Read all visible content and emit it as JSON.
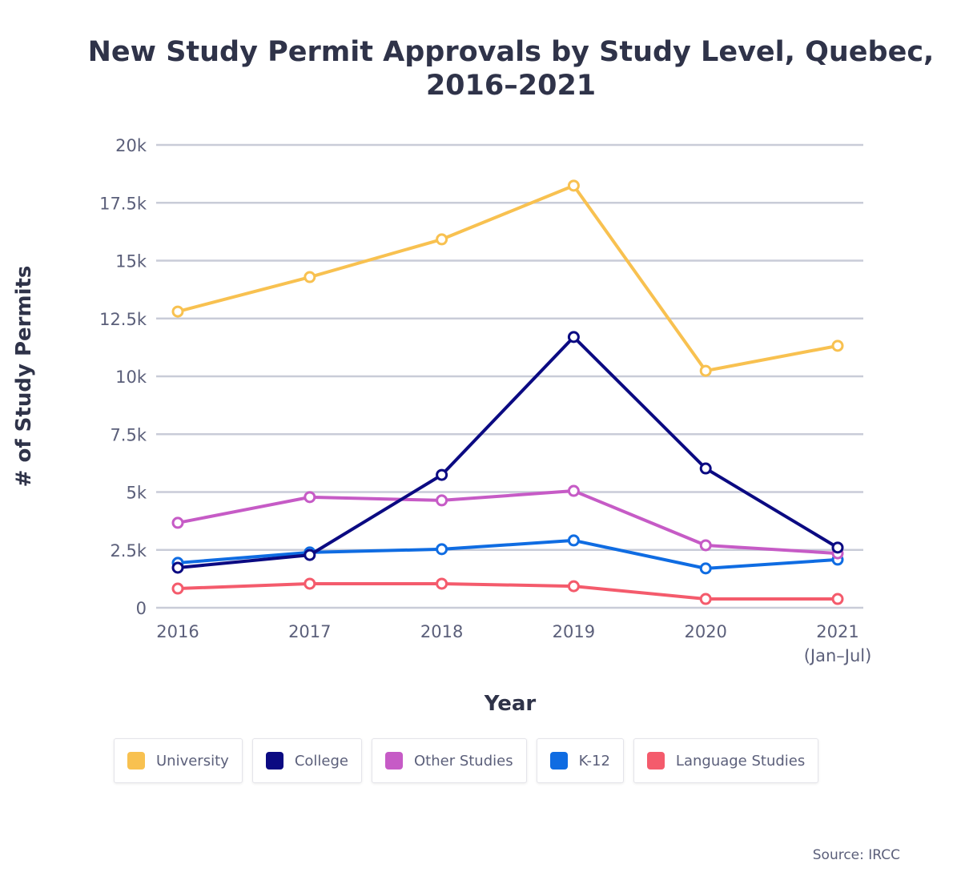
{
  "chart_data": {
    "type": "line",
    "title": "New Study Permit Approvals by Study Level, Quebec, 2016–2021",
    "title_lines": [
      "New Study Permit Approvals by Study Level, Quebec,",
      "2016–2021"
    ],
    "xlabel": "Year",
    "ylabel": "# of Study Permits",
    "categories": [
      "2016",
      "2017",
      "2018",
      "2019",
      "2020",
      "2021"
    ],
    "category_sublabels": [
      "",
      "",
      "",
      "",
      "",
      "(Jan–Jul)"
    ],
    "ylim": [
      0,
      20000
    ],
    "yticks": [
      0,
      2500,
      5000,
      7500,
      10000,
      12500,
      15000,
      17500,
      20000
    ],
    "ytick_labels": [
      "0",
      "2.5k",
      "5k",
      "7.5k",
      "10k",
      "12.5k",
      "15k",
      "17.5k",
      "20k"
    ],
    "grid": true,
    "legend_position": "bottom",
    "series": [
      {
        "name": "University",
        "color": "#f8c150",
        "values": [
          12800,
          14290,
          15920,
          18240,
          10240,
          11320
        ]
      },
      {
        "name": "College",
        "color": "#0b0a82",
        "values": [
          1730,
          2280,
          5740,
          11700,
          6020,
          2600
        ]
      },
      {
        "name": "Other Studies",
        "color": "#c65bc6",
        "values": [
          3670,
          4780,
          4640,
          5050,
          2700,
          2350
        ]
      },
      {
        "name": "K-12",
        "color": "#0f6ce2",
        "values": [
          1940,
          2390,
          2530,
          2910,
          1700,
          2080
        ]
      },
      {
        "name": "Language Studies",
        "color": "#f45b6c",
        "values": [
          830,
          1040,
          1040,
          930,
          380,
          380
        ]
      }
    ]
  },
  "source": "Source: IRCC"
}
